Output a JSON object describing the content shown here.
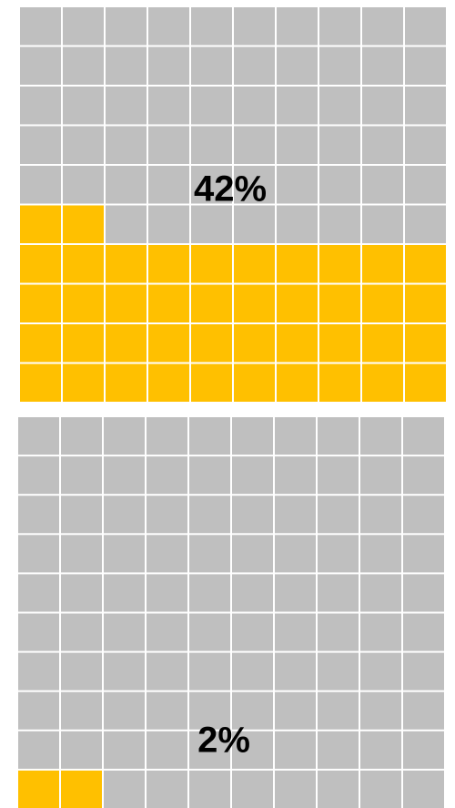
{
  "chart_data": [
    {
      "type": "waffle",
      "values": [
        42
      ],
      "value_labels": [
        "42%"
      ],
      "color": "#ffc000",
      "empty_color": "#bfbfbf"
    },
    {
      "type": "waffle",
      "values": [
        2
      ],
      "value_labels": [
        "2%"
      ],
      "color": "#ffc000",
      "empty_color": "#bfbfbf"
    }
  ]
}
